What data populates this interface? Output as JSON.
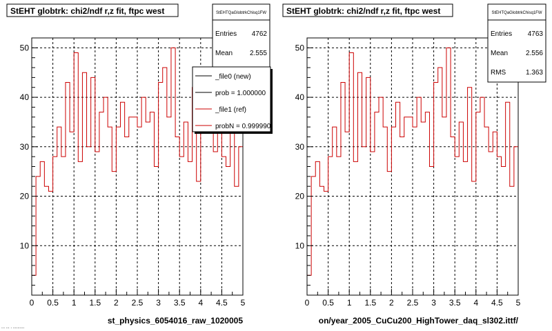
{
  "colors": {
    "background": "#ffffff",
    "frame": "#000000",
    "histogram": "#cc0000",
    "new_line": "#000000"
  },
  "footer_fragment": "... ... . ..........",
  "chart_data": [
    {
      "type": "histogram",
      "title": "StEHT globtrk: chi2/ndf r,z fit, ftpc west",
      "xlabel": "st_physics_6054016_raw_1020005",
      "ylabel": "",
      "xlim": [
        0,
        5
      ],
      "ylim": [
        0,
        52
      ],
      "grid": true,
      "xticks": [
        "0",
        "0.5",
        "1",
        "1.5",
        "2",
        "2.5",
        "3",
        "3.5",
        "4",
        "4.5",
        "5"
      ],
      "yticks": [
        "10",
        "20",
        "30",
        "40",
        "50"
      ],
      "bin_width": 0.1,
      "values": [
        4,
        24,
        27,
        22,
        21,
        28,
        34,
        28,
        43,
        33,
        49,
        27,
        45,
        30,
        44,
        29,
        37,
        40,
        34,
        25,
        34,
        39,
        32,
        36,
        36,
        34,
        40,
        35,
        37,
        26,
        43,
        46,
        36,
        50,
        32,
        28,
        35,
        27,
        42,
        23,
        37,
        40,
        34,
        29,
        33,
        28,
        26,
        39,
        22,
        30
      ],
      "stats": {
        "name": "StEHTQaGlobtrkChisq1FW",
        "rows": [
          {
            "label": "Entries",
            "value": "4762"
          },
          {
            "label": "Mean",
            "value": "2.555"
          }
        ]
      },
      "legend": {
        "position": "top-right",
        "entries": [
          {
            "label": "_file0 (new)",
            "color": "#000000"
          },
          {
            "label": "prob = 1.000000",
            "color": "#000000"
          },
          {
            "label": "_file1 (ref)",
            "color": "#cc0000"
          },
          {
            "label": "probN = 0.999990",
            "color": "#cc0000"
          }
        ]
      }
    },
    {
      "type": "histogram",
      "title": "StEHT globtrk: chi2/ndf r,z fit, ftpc west",
      "xlabel": "on/year_2005_CuCu200_HighTower_daq_sl302.ittf/",
      "ylabel": "",
      "xlim": [
        0,
        5
      ],
      "ylim": [
        0,
        52
      ],
      "grid": true,
      "xticks": [
        "0",
        "0.5",
        "1",
        "1.5",
        "2",
        "2.5",
        "3",
        "3.5",
        "4",
        "4.5",
        "5"
      ],
      "yticks": [
        "10",
        "20",
        "30",
        "40",
        "50"
      ],
      "bin_width": 0.1,
      "values": [
        4,
        24,
        27,
        22,
        21,
        28,
        34,
        28,
        43,
        33,
        49,
        27,
        45,
        30,
        44,
        29,
        37,
        40,
        34,
        25,
        34,
        39,
        32,
        36,
        36,
        34,
        40,
        35,
        37,
        26,
        43,
        46,
        36,
        50,
        32,
        28,
        35,
        27,
        42,
        23,
        37,
        40,
        34,
        29,
        33,
        28,
        26,
        39,
        22,
        30
      ],
      "stats": {
        "name": "StEHTQaGlobtrkChisq1FW",
        "rows": [
          {
            "label": "Entries",
            "value": "4763"
          },
          {
            "label": "Mean",
            "value": "2.556"
          },
          {
            "label": "RMS",
            "value": "1.363"
          }
        ]
      }
    }
  ]
}
